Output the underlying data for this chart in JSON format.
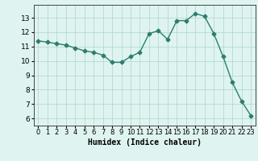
{
  "x": [
    0,
    1,
    2,
    3,
    4,
    5,
    6,
    7,
    8,
    9,
    10,
    11,
    12,
    13,
    14,
    15,
    16,
    17,
    18,
    19,
    20,
    21,
    22,
    23
  ],
  "y": [
    11.4,
    11.3,
    11.2,
    11.1,
    10.9,
    10.7,
    10.6,
    10.4,
    9.9,
    9.9,
    10.3,
    10.6,
    11.9,
    12.1,
    11.5,
    12.8,
    12.8,
    13.3,
    13.1,
    11.9,
    10.3,
    8.5,
    7.2,
    6.2
  ],
  "line_color": "#2e7d6e",
  "marker": "D",
  "marker_size": 2.5,
  "line_width": 1.0,
  "bg_color": "#dff4f0",
  "grid_color": "#b5d9d3",
  "xlabel": "Humidex (Indice chaleur)",
  "xlabel_fontsize": 7,
  "tick_fontsize": 6.5,
  "ylim": [
    5.5,
    13.9
  ],
  "xlim": [
    -0.5,
    23.5
  ],
  "yticks": [
    6,
    7,
    8,
    9,
    10,
    11,
    12,
    13
  ],
  "xticks": [
    0,
    1,
    2,
    3,
    4,
    5,
    6,
    7,
    8,
    9,
    10,
    11,
    12,
    13,
    14,
    15,
    16,
    17,
    18,
    19,
    20,
    21,
    22,
    23
  ]
}
